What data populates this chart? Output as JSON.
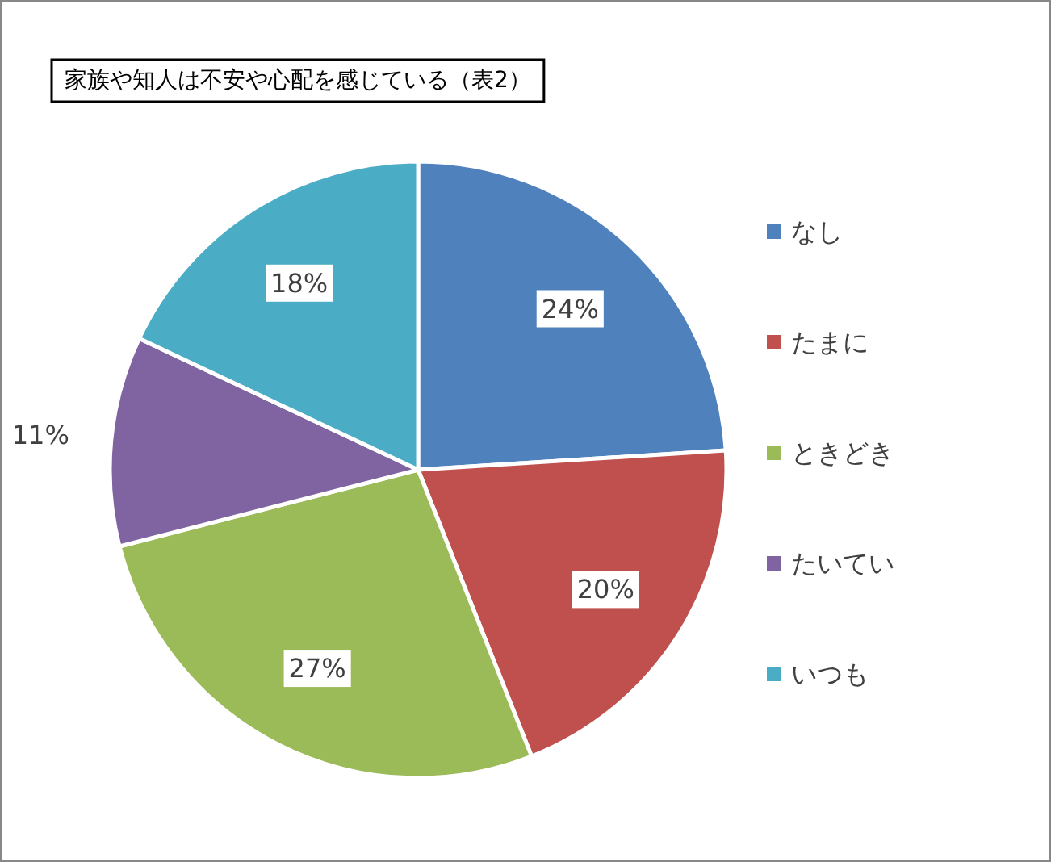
{
  "chart_data": {
    "type": "pie",
    "title": "家族や知人は不安や心配を感じている（表2）",
    "categories": [
      "なし",
      "たまに",
      "ときどき",
      "たいてい",
      "いつも"
    ],
    "values": [
      24,
      20,
      27,
      11,
      18
    ],
    "colors": [
      "#4f81bd",
      "#c0504d",
      "#9bbb59",
      "#8064a2",
      "#4bacc6"
    ],
    "value_labels": [
      "24%",
      "20%",
      "27%",
      "11%",
      "18%"
    ],
    "legend": "right"
  }
}
